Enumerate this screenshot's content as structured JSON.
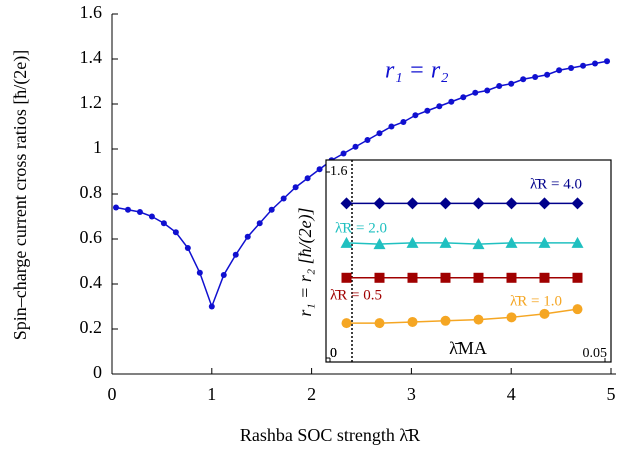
{
  "chart_data": [
    {
      "type": "line",
      "xlabel": "Rashba SOC strength λ̄R",
      "ylabel": "Spin–charge current cross ratios [ħ/(2e)]",
      "annotation": "r₁ = r₂",
      "xlim": [
        0,
        5
      ],
      "xticks": [
        0,
        1,
        2,
        3,
        4,
        5
      ],
      "ylim": [
        0,
        1.6
      ],
      "yticks": [
        0,
        0.2,
        0.4,
        0.6,
        0.8,
        1,
        1.2,
        1.4,
        1.6
      ],
      "x": [
        0.04,
        0.16,
        0.28,
        0.4,
        0.52,
        0.64,
        0.76,
        0.88,
        1.0,
        1.12,
        1.24,
        1.36,
        1.48,
        1.6,
        1.72,
        1.84,
        1.96,
        2.08,
        2.2,
        2.32,
        2.44,
        2.56,
        2.68,
        2.8,
        2.92,
        3.04,
        3.16,
        3.28,
        3.4,
        3.52,
        3.64,
        3.76,
        3.88,
        4.0,
        4.12,
        4.24,
        4.36,
        4.48,
        4.6,
        4.72,
        4.84,
        4.96
      ],
      "series": [
        {
          "color": "#1010d0",
          "values": [
            0.74,
            0.73,
            0.72,
            0.7,
            0.67,
            0.63,
            0.56,
            0.45,
            0.3,
            0.44,
            0.53,
            0.61,
            0.67,
            0.73,
            0.78,
            0.83,
            0.87,
            0.91,
            0.95,
            0.98,
            1.01,
            1.04,
            1.07,
            1.1,
            1.12,
            1.15,
            1.17,
            1.19,
            1.21,
            1.23,
            1.25,
            1.26,
            1.28,
            1.29,
            1.31,
            1.32,
            1.33,
            1.35,
            1.36,
            1.37,
            1.38,
            1.39
          ]
        }
      ]
    },
    {
      "type": "line",
      "xlabel": "λ̄MA",
      "ylabel": "r₁ = r₂ [ħ/(2e)]",
      "xlim": [
        0,
        0.05
      ],
      "xticks": [
        0,
        0.05
      ],
      "ylim": [
        0,
        1.6
      ],
      "yticks": [
        0,
        1.6
      ],
      "vline_x": 0.004,
      "x": [
        0.003,
        0.009,
        0.015,
        0.021,
        0.027,
        0.033,
        0.039,
        0.045
      ],
      "series": [
        {
          "name": "λ̄R = 4.0",
          "color": "#00008b",
          "marker": "diamond",
          "values": [
            1.33,
            1.33,
            1.33,
            1.33,
            1.33,
            1.33,
            1.33,
            1.33
          ]
        },
        {
          "name": "λ̄R = 2.0",
          "color": "#20c0c0",
          "marker": "triangle",
          "values": [
            0.99,
            0.98,
            0.99,
            0.99,
            0.98,
            0.99,
            0.99,
            0.99
          ]
        },
        {
          "name": "λ̄R = 0.5",
          "color": "#a00000",
          "marker": "square",
          "values": [
            0.69,
            0.69,
            0.69,
            0.69,
            0.69,
            0.69,
            0.69,
            0.69
          ]
        },
        {
          "name": "λ̄R = 1.0",
          "color": "#f5a623",
          "marker": "circle",
          "values": [
            0.3,
            0.3,
            0.31,
            0.32,
            0.33,
            0.35,
            0.38,
            0.42
          ]
        }
      ]
    }
  ]
}
